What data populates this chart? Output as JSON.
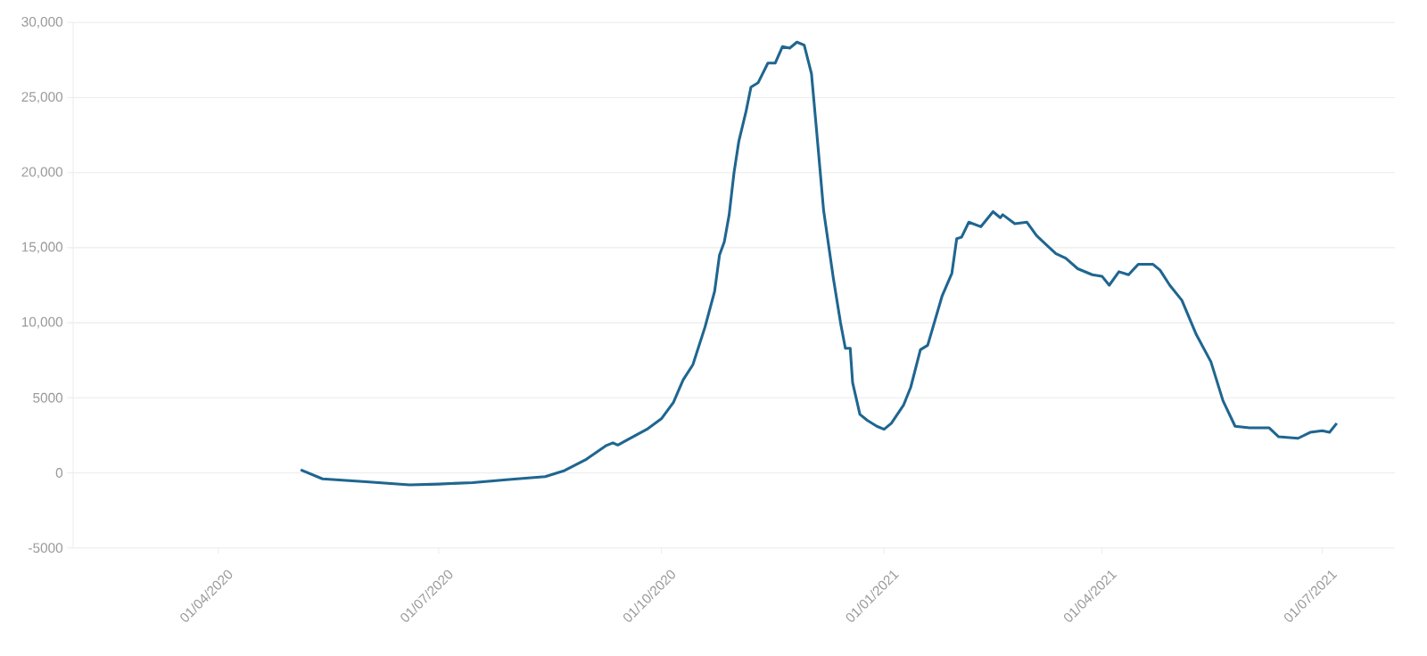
{
  "chart_data": {
    "type": "line",
    "color": "#1f6690",
    "grid": "y",
    "marker": "none",
    "line_style": "solid",
    "xlim": [
      "2020-02-01",
      "2021-07-31"
    ],
    "xticks": [
      {
        "value": "2020-04-01",
        "label": "01/04/2020"
      },
      {
        "value": "2020-07-01",
        "label": "01/07/2020"
      },
      {
        "value": "2020-10-01",
        "label": "01/10/2020"
      },
      {
        "value": "2021-01-01",
        "label": "01/01/2021"
      },
      {
        "value": "2021-04-01",
        "label": "01/04/2021"
      },
      {
        "value": "2021-07-01",
        "label": "01/07/2021"
      }
    ],
    "ylim": [
      -5000,
      30000
    ],
    "yticks": [
      {
        "value": -5000,
        "label": "-5000"
      },
      {
        "value": 0,
        "label": "0"
      },
      {
        "value": 5000,
        "label": "5000"
      },
      {
        "value": 10000,
        "label": "10,000"
      },
      {
        "value": 15000,
        "label": "15,000"
      },
      {
        "value": 20000,
        "label": "20,000"
      },
      {
        "value": 25000,
        "label": "25,000"
      },
      {
        "value": 30000,
        "label": "30,000"
      }
    ],
    "x": [
      "2020-05-05",
      "2020-05-14",
      "2020-06-01",
      "2020-06-19",
      "2020-07-01",
      "2020-07-15",
      "2020-07-30",
      "2020-08-14",
      "2020-08-22",
      "2020-08-31",
      "2020-09-08",
      "2020-09-11",
      "2020-09-13",
      "2020-09-17",
      "2020-09-25",
      "2020-10-01",
      "2020-10-06",
      "2020-10-10",
      "2020-10-14",
      "2020-10-19",
      "2020-10-23",
      "2020-10-25",
      "2020-10-27",
      "2020-10-29",
      "2020-10-31",
      "2020-11-02",
      "2020-11-05",
      "2020-11-07",
      "2020-11-10",
      "2020-11-14",
      "2020-11-17",
      "2020-11-20",
      "2020-11-23",
      "2020-11-26",
      "2020-11-29",
      "2020-12-02",
      "2020-12-04",
      "2020-12-07",
      "2020-12-11",
      "2020-12-14",
      "2020-12-16",
      "2020-12-18",
      "2020-12-19",
      "2020-12-22",
      "2020-12-25",
      "2020-12-29",
      "2021-01-01",
      "2021-01-04",
      "2021-01-09",
      "2021-01-12",
      "2021-01-16",
      "2021-01-19",
      "2021-01-25",
      "2021-01-29",
      "2021-01-31",
      "2021-02-02",
      "2021-02-05",
      "2021-02-10",
      "2021-02-15",
      "2021-02-18",
      "2021-02-19",
      "2021-02-24",
      "2021-03-01",
      "2021-03-05",
      "2021-03-09",
      "2021-03-13",
      "2021-03-17",
      "2021-03-22",
      "2021-03-28",
      "2021-04-01",
      "2021-04-04",
      "2021-04-08",
      "2021-04-12",
      "2021-04-16",
      "2021-04-22",
      "2021-04-25",
      "2021-04-29",
      "2021-05-04",
      "2021-05-10",
      "2021-05-16",
      "2021-05-21",
      "2021-05-26",
      "2021-06-01",
      "2021-06-06",
      "2021-06-09",
      "2021-06-13",
      "2021-06-21",
      "2021-06-26",
      "2021-07-01",
      "2021-07-04",
      "2021-07-07"
    ],
    "values": [
      200,
      -400,
      -600,
      -800,
      -750,
      -650,
      -450,
      -250,
      150,
      900,
      1800,
      2000,
      1850,
      2200,
      2900,
      3600,
      4700,
      6200,
      7200,
      9700,
      12100,
      14500,
      15400,
      17200,
      20000,
      22100,
      24100,
      25700,
      26000,
      27300,
      27300,
      28400,
      28300,
      28700,
      28500,
      26600,
      23000,
      17500,
      13000,
      10000,
      8300,
      8300,
      6000,
      3900,
      3500,
      3100,
      2900,
      3300,
      4500,
      5700,
      8200,
      8500,
      11800,
      13300,
      15600,
      15700,
      16700,
      16400,
      17400,
      17000,
      17200,
      16600,
      16700,
      15800,
      15200,
      14600,
      14300,
      13600,
      13200,
      13100,
      12500,
      13400,
      13200,
      13900,
      13900,
      13500,
      12500,
      11500,
      9200,
      7400,
      4800,
      3100,
      3000,
      3000,
      3000,
      2400,
      2300,
      2700,
      2800,
      2700,
      3300
    ]
  }
}
